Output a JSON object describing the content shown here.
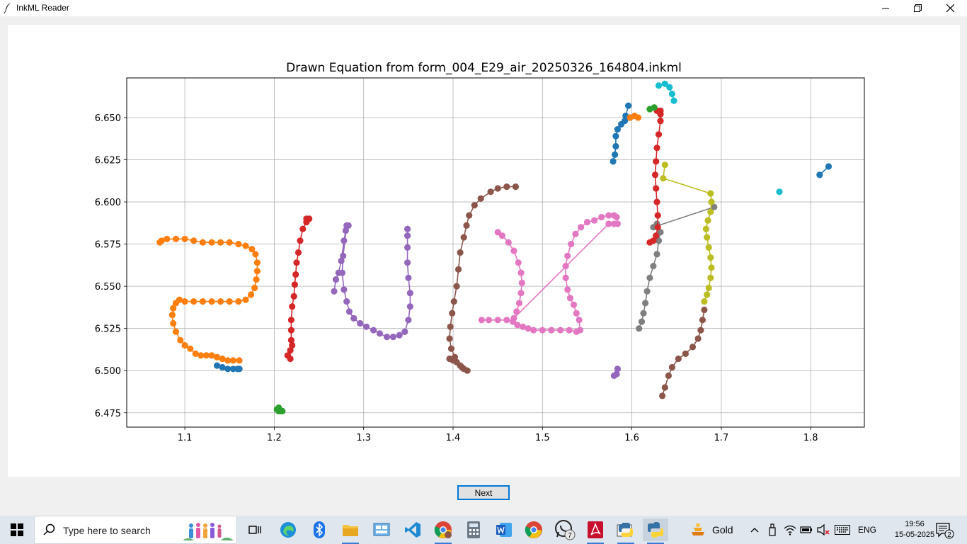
{
  "window": {
    "title": "InkML Reader",
    "controls": {
      "minimize": "minimize",
      "maximize": "maximize",
      "close": "close"
    }
  },
  "figure": {
    "title": "Drawn Equation from form_004_E29_air_20250326_164804.inkml"
  },
  "chart_data": {
    "type": "scatter",
    "title": "Drawn Equation from form_004_E29_air_20250326_164804.inkml",
    "xlabel": "",
    "ylabel": "",
    "xlim": [
      1.035,
      1.86
    ],
    "ylim": [
      6.6735,
      6.4665
    ],
    "y_inverted": true,
    "grid": true,
    "xticks": [
      "1.1",
      "1.2",
      "1.3",
      "1.4",
      "1.5",
      "1.6",
      "1.7",
      "1.8"
    ],
    "yticks": [
      "6.475",
      "6.500",
      "6.525",
      "6.550",
      "6.575",
      "6.600",
      "6.625",
      "6.650"
    ],
    "series": [
      {
        "color": "#1f77b4",
        "points": [
          [
            1.136,
            6.503
          ],
          [
            1.142,
            6.502
          ],
          [
            1.148,
            6.501
          ],
          [
            1.154,
            6.501
          ],
          [
            1.159,
            6.501
          ],
          [
            1.161,
            6.501
          ]
        ]
      },
      {
        "color": "#ff7f0e",
        "points": [
          [
            1.161,
            6.506
          ],
          [
            1.154,
            6.506
          ],
          [
            1.148,
            6.506
          ],
          [
            1.142,
            6.507
          ],
          [
            1.136,
            6.508
          ],
          [
            1.13,
            6.509
          ],
          [
            1.124,
            6.509
          ],
          [
            1.118,
            6.509
          ],
          [
            1.112,
            6.51
          ],
          [
            1.106,
            6.513
          ],
          [
            1.1,
            6.515
          ],
          [
            1.095,
            6.518
          ],
          [
            1.09,
            6.523
          ],
          [
            1.087,
            6.528
          ],
          [
            1.086,
            6.533
          ],
          [
            1.087,
            6.537
          ],
          [
            1.09,
            6.54
          ],
          [
            1.094,
            6.542
          ],
          [
            1.1,
            6.541
          ],
          [
            1.11,
            6.541
          ],
          [
            1.12,
            6.541
          ],
          [
            1.13,
            6.541
          ],
          [
            1.14,
            6.541
          ],
          [
            1.15,
            6.541
          ],
          [
            1.16,
            6.541
          ],
          [
            1.168,
            6.542
          ],
          [
            1.174,
            6.545
          ],
          [
            1.178,
            6.549
          ],
          [
            1.18,
            6.554
          ],
          [
            1.181,
            6.559
          ],
          [
            1.181,
            6.564
          ],
          [
            1.179,
            6.569
          ],
          [
            1.175,
            6.572
          ],
          [
            1.168,
            6.574
          ],
          [
            1.16,
            6.575
          ],
          [
            1.15,
            6.576
          ],
          [
            1.14,
            6.576
          ],
          [
            1.13,
            6.576
          ],
          [
            1.12,
            6.576
          ],
          [
            1.11,
            6.577
          ],
          [
            1.1,
            6.578
          ],
          [
            1.09,
            6.578
          ],
          [
            1.08,
            6.578
          ],
          [
            1.074,
            6.577
          ],
          [
            1.072,
            6.576
          ]
        ]
      },
      {
        "color": "#2ca02c",
        "points": [
          [
            1.203,
            6.477
          ],
          [
            1.205,
            6.476
          ],
          [
            1.207,
            6.476
          ],
          [
            1.209,
            6.476
          ],
          [
            1.205,
            6.478
          ]
        ]
      },
      {
        "color": "#d62728",
        "points": [
          [
            1.215,
            6.509
          ],
          [
            1.218,
            6.507
          ],
          [
            1.218,
            6.512
          ],
          [
            1.22,
            6.515
          ],
          [
            1.219,
            6.518
          ],
          [
            1.219,
            6.524
          ],
          [
            1.219,
            6.53
          ],
          [
            1.22,
            6.538
          ],
          [
            1.222,
            6.544
          ],
          [
            1.223,
            6.551
          ],
          [
            1.224,
            6.557
          ],
          [
            1.225,
            6.564
          ],
          [
            1.227,
            6.57
          ],
          [
            1.229,
            6.577
          ],
          [
            1.232,
            6.584
          ],
          [
            1.236,
            6.588
          ],
          [
            1.239,
            6.59
          ],
          [
            1.236,
            6.59
          ]
        ]
      },
      {
        "color": "#9467bd",
        "points": [
          [
            1.267,
            6.547
          ],
          [
            1.269,
            6.554
          ],
          [
            1.272,
            6.558
          ],
          [
            1.275,
            6.565
          ],
          [
            1.278,
            6.577
          ],
          [
            1.28,
            6.583
          ],
          [
            1.283,
            6.586
          ],
          [
            1.281,
            6.586
          ],
          [
            1.277,
            6.568
          ],
          [
            1.276,
            6.558
          ],
          [
            1.278,
            6.548
          ],
          [
            1.281,
            6.541
          ],
          [
            1.284,
            6.535
          ],
          [
            1.289,
            6.531
          ],
          [
            1.296,
            6.528
          ],
          [
            1.303,
            6.526
          ],
          [
            1.311,
            6.524
          ],
          [
            1.318,
            6.522
          ],
          [
            1.326,
            6.52
          ],
          [
            1.333,
            6.52
          ],
          [
            1.34,
            6.521
          ],
          [
            1.346,
            6.523
          ],
          [
            1.35,
            6.53
          ],
          [
            1.352,
            6.538
          ],
          [
            1.352,
            6.546
          ],
          [
            1.35,
            6.555
          ],
          [
            1.349,
            6.564
          ],
          [
            1.349,
            6.573
          ],
          [
            1.349,
            6.58
          ],
          [
            1.349,
            6.584
          ]
        ]
      },
      {
        "color": "#8c564b",
        "points": [
          [
            1.396,
            6.507
          ],
          [
            1.4,
            6.506
          ],
          [
            1.404,
            6.505
          ],
          [
            1.408,
            6.503
          ],
          [
            1.412,
            6.501
          ],
          [
            1.416,
            6.5
          ],
          [
            1.41,
            6.502
          ],
          [
            1.402,
            6.508
          ],
          [
            1.398,
            6.513
          ],
          [
            1.396,
            6.519
          ],
          [
            1.397,
            6.526
          ],
          [
            1.399,
            6.534
          ],
          [
            1.401,
            6.541
          ],
          [
            1.404,
            6.55
          ],
          [
            1.406,
            6.56
          ],
          [
            1.408,
            6.57
          ],
          [
            1.412,
            6.579
          ],
          [
            1.415,
            6.586
          ],
          [
            1.418,
            6.592
          ],
          [
            1.424,
            6.598
          ],
          [
            1.431,
            6.602
          ],
          [
            1.442,
            6.606
          ],
          [
            1.45,
            6.608
          ],
          [
            1.46,
            6.609
          ],
          [
            1.47,
            6.609
          ]
        ]
      },
      {
        "color": "#e377c2",
        "points": [
          [
            1.432,
            6.53
          ],
          [
            1.44,
            6.53
          ],
          [
            1.45,
            6.53
          ],
          [
            1.46,
            6.53
          ],
          [
            1.467,
            6.529
          ],
          [
            1.472,
            6.527
          ],
          [
            1.478,
            6.526
          ],
          [
            1.484,
            6.525
          ],
          [
            1.49,
            6.524
          ],
          [
            1.5,
            6.524
          ],
          [
            1.51,
            6.524
          ],
          [
            1.52,
            6.524
          ],
          [
            1.53,
            6.524
          ],
          [
            1.538,
            6.523
          ],
          [
            1.542,
            6.524
          ],
          [
            1.541,
            6.53
          ],
          [
            1.538,
            6.534
          ],
          [
            1.535,
            6.539
          ],
          [
            1.531,
            6.543
          ],
          [
            1.528,
            6.548
          ],
          [
            1.526,
            6.555
          ],
          [
            1.526,
            6.562
          ],
          [
            1.528,
            6.568
          ],
          [
            1.532,
            6.575
          ],
          [
            1.537,
            6.581
          ],
          [
            1.543,
            6.585
          ],
          [
            1.55,
            6.588
          ],
          [
            1.558,
            6.589
          ],
          [
            1.566,
            6.591
          ],
          [
            1.574,
            6.592
          ],
          [
            1.58,
            6.592
          ],
          [
            1.583,
            6.591
          ],
          [
            1.584,
            6.587
          ],
          [
            1.58,
            6.587
          ],
          [
            1.574,
            6.587
          ],
          [
            1.468,
            6.531
          ],
          [
            1.471,
            6.535
          ],
          [
            1.474,
            6.54
          ],
          [
            1.476,
            6.546
          ],
          [
            1.477,
            6.552
          ],
          [
            1.476,
            6.558
          ],
          [
            1.473,
            6.564
          ],
          [
            1.468,
            6.571
          ],
          [
            1.462,
            6.576
          ],
          [
            1.455,
            6.58
          ],
          [
            1.45,
            6.582
          ]
        ]
      },
      {
        "color": "#7f7f7f",
        "points": [
          [
            1.608,
            6.525
          ],
          [
            1.611,
            6.529
          ],
          [
            1.613,
            6.534
          ],
          [
            1.615,
            6.54
          ],
          [
            1.617,
            6.547
          ],
          [
            1.62,
            6.555
          ],
          [
            1.624,
            6.562
          ],
          [
            1.628,
            6.569
          ],
          [
            1.63,
            6.577
          ],
          [
            1.632,
            6.582
          ],
          [
            1.628,
            6.587
          ],
          [
            1.624,
            6.585
          ],
          [
            1.692,
            6.597
          ]
        ]
      },
      {
        "color": "#bcbd22",
        "points": [
          [
            1.681,
            6.541
          ],
          [
            1.684,
            6.545
          ],
          [
            1.686,
            6.549
          ],
          [
            1.688,
            6.555
          ],
          [
            1.689,
            6.561
          ],
          [
            1.688,
            6.567
          ],
          [
            1.686,
            6.573
          ],
          [
            1.684,
            6.579
          ],
          [
            1.683,
            6.584
          ],
          [
            1.685,
            6.589
          ],
          [
            1.688,
            6.594
          ],
          [
            1.689,
            6.6
          ],
          [
            1.688,
            6.605
          ],
          [
            1.635,
            6.614
          ],
          [
            1.637,
            6.622
          ]
        ]
      },
      {
        "color": "#d62728",
        "points": [
          [
            1.62,
            6.576
          ],
          [
            1.624,
            6.577
          ],
          [
            1.627,
            6.58
          ],
          [
            1.629,
            6.585
          ],
          [
            1.629,
            6.592
          ],
          [
            1.628,
            6.6
          ],
          [
            1.627,
            6.608
          ],
          [
            1.626,
            6.616
          ],
          [
            1.627,
            6.624
          ],
          [
            1.628,
            6.632
          ],
          [
            1.63,
            6.64
          ],
          [
            1.632,
            6.648
          ],
          [
            1.632,
            6.654
          ],
          [
            1.628,
            6.654
          ],
          [
            1.632,
            6.652
          ]
        ]
      },
      {
        "color": "#1f77b4",
        "points": [
          [
            1.579,
            6.624
          ],
          [
            1.581,
            6.628
          ],
          [
            1.582,
            6.633
          ],
          [
            1.582,
            6.639
          ],
          [
            1.584,
            6.643
          ],
          [
            1.588,
            6.646
          ],
          [
            1.592,
            6.648
          ],
          [
            1.595,
            6.65
          ],
          [
            1.593,
            6.651
          ],
          [
            1.596,
            6.657
          ]
        ]
      },
      {
        "color": "#ff7f0e",
        "points": [
          [
            1.598,
            6.65
          ],
          [
            1.603,
            6.651
          ],
          [
            1.607,
            6.65
          ]
        ]
      },
      {
        "color": "#2ca02c",
        "points": [
          [
            1.62,
            6.655
          ],
          [
            1.625,
            6.656
          ]
        ]
      },
      {
        "color": "#17becf",
        "points": [
          [
            1.647,
            6.66
          ],
          [
            1.645,
            6.664
          ],
          [
            1.642,
            6.668
          ],
          [
            1.637,
            6.67
          ],
          [
            1.63,
            6.669
          ]
        ]
      },
      {
        "color": "#17becf",
        "points": [
          [
            1.765,
            6.606
          ]
        ]
      },
      {
        "color": "#1f77b4",
        "points": [
          [
            1.81,
            6.616
          ],
          [
            1.82,
            6.621
          ]
        ]
      },
      {
        "color": "#9467bd",
        "points": [
          [
            1.58,
            6.497
          ],
          [
            1.583,
            6.498
          ],
          [
            1.584,
            6.501
          ]
        ]
      },
      {
        "color": "#8c564b",
        "points": [
          [
            1.634,
            6.485
          ],
          [
            1.637,
            6.49
          ],
          [
            1.641,
            6.497
          ],
          [
            1.645,
            6.502
          ],
          [
            1.652,
            6.507
          ],
          [
            1.66,
            6.51
          ],
          [
            1.668,
            6.514
          ],
          [
            1.674,
            6.519
          ],
          [
            1.677,
            6.524
          ],
          [
            1.679,
            6.53
          ],
          [
            1.681,
            6.536
          ]
        ]
      }
    ]
  },
  "next_button": {
    "label": "Next"
  },
  "taskbar": {
    "search_placeholder": "Type here to search",
    "weather_label": "Gold",
    "language": "ENG",
    "time": "19:56",
    "date": "15-05-2025",
    "whatsapp_badge": "7",
    "notification_count": "2"
  }
}
